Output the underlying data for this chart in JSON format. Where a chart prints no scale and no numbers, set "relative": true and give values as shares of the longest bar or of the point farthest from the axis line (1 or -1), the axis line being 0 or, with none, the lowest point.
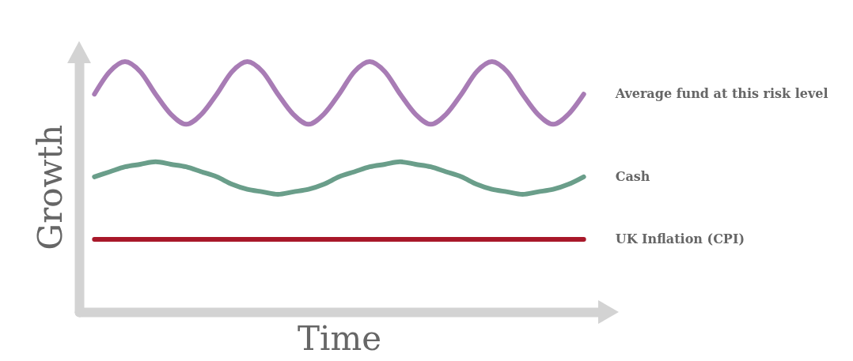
{
  "chart_data": {
    "type": "line",
    "relative": true,
    "xlabel": "Time",
    "ylabel": "Growth",
    "tick_labels": false,
    "grid": false,
    "legend": false,
    "line_style": "solid",
    "marker": "none",
    "categories": [
      null,
      null,
      null,
      null,
      null,
      null,
      null,
      null,
      null,
      null,
      null,
      null,
      null,
      null,
      null,
      null,
      null,
      null,
      null,
      null,
      null,
      null,
      null,
      null,
      null,
      null,
      null,
      null,
      null,
      null,
      null,
      null,
      null
    ],
    "series": [
      {
        "name": "Average fund at this risk level",
        "color": "#a87cb5",
        "values": [
          0.87,
          0.96,
          1,
          0.96,
          0.87,
          0.79,
          0.75,
          0.79,
          0.87,
          0.96,
          1,
          0.96,
          0.87,
          0.79,
          0.75,
          0.79,
          0.87,
          0.96,
          1,
          0.96,
          0.87,
          0.79,
          0.75,
          0.79,
          0.87,
          0.96,
          1,
          0.96,
          0.87,
          0.79,
          0.75,
          0.79,
          0.87
        ]
      },
      {
        "name": "Cash",
        "color": "#6a9e8a",
        "values": [
          0.54,
          0.56,
          0.58,
          0.59,
          0.6,
          0.59,
          0.58,
          0.56,
          0.54,
          0.51,
          0.49,
          0.48,
          0.47,
          0.48,
          0.49,
          0.51,
          0.54,
          0.56,
          0.58,
          0.59,
          0.6,
          0.59,
          0.58,
          0.56,
          0.54,
          0.51,
          0.49,
          0.48,
          0.47,
          0.48,
          0.49,
          0.51,
          0.54
        ]
      },
      {
        "name": "UK Inflation (CPI)",
        "color": "#a8182a",
        "values": [
          0.29,
          0.29,
          0.29,
          0.29,
          0.29,
          0.29,
          0.29,
          0.29,
          0.29,
          0.29,
          0.29,
          0.29,
          0.29,
          0.29,
          0.29,
          0.29,
          0.29,
          0.29,
          0.29,
          0.29,
          0.29,
          0.29,
          0.29,
          0.29,
          0.29,
          0.29,
          0.29,
          0.29,
          0.29,
          0.29,
          0.29,
          0.29,
          0.29
        ]
      }
    ]
  }
}
